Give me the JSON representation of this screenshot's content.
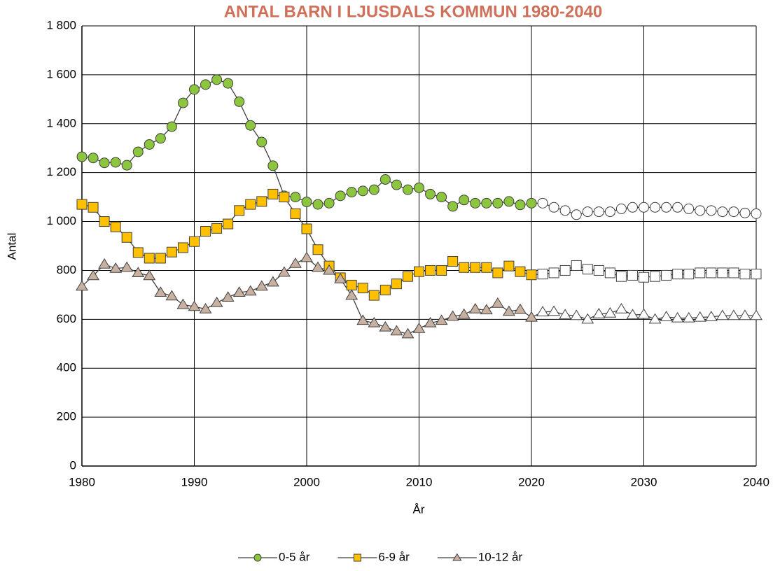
{
  "chart_data": {
    "type": "line",
    "title": "ANTAL BARN I LJUSDALS KOMMUN 1980-2040",
    "x_label": "År",
    "y_label": "Antal",
    "x": [
      1980,
      1981,
      1982,
      1983,
      1984,
      1985,
      1986,
      1987,
      1988,
      1989,
      1990,
      1991,
      1992,
      1993,
      1994,
      1995,
      1996,
      1997,
      1998,
      1999,
      2000,
      2001,
      2002,
      2003,
      2004,
      2005,
      2006,
      2007,
      2008,
      2009,
      2010,
      2011,
      2012,
      2013,
      2014,
      2015,
      2016,
      2017,
      2018,
      2019,
      2020,
      2021,
      2022,
      2023,
      2024,
      2025,
      2026,
      2027,
      2028,
      2029,
      2030,
      2031,
      2032,
      2033,
      2034,
      2035,
      2036,
      2037,
      2038,
      2039,
      2040
    ],
    "series": [
      {
        "name": "0-5 år",
        "color": "#8cc63f",
        "marker": "circle",
        "values": [
          1265,
          1260,
          1240,
          1242,
          1230,
          1285,
          1315,
          1340,
          1388,
          1485,
          1540,
          1560,
          1580,
          1565,
          1490,
          1393,
          1325,
          1228,
          1105,
          1100,
          1080,
          1070,
          1075,
          1105,
          1120,
          1125,
          1130,
          1172,
          1150,
          1130,
          1138,
          1112,
          1100,
          1062,
          1088,
          1075,
          1075,
          1075,
          1082,
          1068,
          1075,
          1075,
          1058,
          1045,
          1028,
          1040,
          1040,
          1040,
          1052,
          1058,
          1058,
          1058,
          1058,
          1058,
          1052,
          1045,
          1045,
          1040,
          1040,
          1035,
          1032
        ]
      },
      {
        "name": "6-9 år",
        "color": "#ffc000",
        "marker": "square",
        "values": [
          1070,
          1058,
          1000,
          978,
          935,
          873,
          850,
          850,
          875,
          893,
          918,
          960,
          972,
          990,
          1045,
          1070,
          1082,
          1112,
          1100,
          1032,
          970,
          885,
          818,
          770,
          740,
          728,
          698,
          720,
          745,
          775,
          795,
          800,
          800,
          837,
          812,
          812,
          812,
          790,
          818,
          795,
          782,
          785,
          790,
          800,
          820,
          805,
          800,
          790,
          775,
          780,
          772,
          775,
          780,
          785,
          785,
          790,
          790,
          790,
          790,
          785,
          785
        ]
      },
      {
        "name": "10-12 år",
        "color": "#c9b1a1",
        "marker": "triangle",
        "values": [
          735,
          778,
          825,
          808,
          812,
          790,
          778,
          710,
          695,
          660,
          652,
          642,
          668,
          690,
          710,
          715,
          735,
          752,
          792,
          828,
          852,
          812,
          800,
          765,
          698,
          595,
          585,
          568,
          552,
          540,
          562,
          585,
          595,
          612,
          620,
          642,
          638,
          665,
          632,
          640,
          608,
          630,
          632,
          618,
          615,
          600,
          622,
          625,
          642,
          618,
          620,
          600,
          610,
          605,
          605,
          608,
          610,
          615,
          615,
          615,
          615
        ]
      }
    ],
    "projection_from": 2021,
    "projection_fill": "#ffffff",
    "line_color": "#404040",
    "xlim": [
      1980,
      2040
    ],
    "xticks": [
      1980,
      1990,
      2000,
      2010,
      2020,
      2030,
      2040
    ],
    "ylim": [
      0,
      1800
    ],
    "yticks": [
      0,
      200,
      400,
      600,
      800,
      {
        "value": 1000,
        "label": "1 000"
      },
      {
        "value": 1200,
        "label": "1 200"
      },
      {
        "value": 1400,
        "label": "1 400"
      },
      {
        "value": 1600,
        "label": "1 600"
      },
      {
        "value": 1800,
        "label": "1 800"
      }
    ],
    "grid": true,
    "title_color": "#d0705a",
    "legend": "bottom"
  }
}
